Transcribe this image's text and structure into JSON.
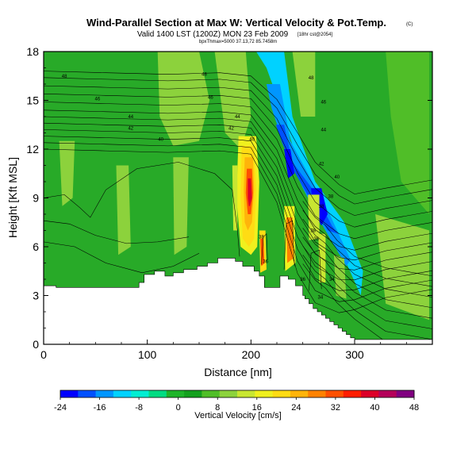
{
  "title": "Wind-Parallel Section at Max W: Vertical Velocity & Pot.Temp.",
  "copyright": "(C)",
  "subtitle": "Valid 1400 LST (1200Z) MON 23 Feb 2009",
  "subtitle_small": "[18hr cst@2054]",
  "subtitle_line3": "bpxThmax=5000 37.13,72 85.7458m",
  "chart_data": {
    "type": "heatmap",
    "xlabel": "Distance [nm]",
    "ylabel": "Height [Kft MSL]",
    "xlim": [
      0,
      375
    ],
    "ylim": [
      0,
      18
    ],
    "x_ticks": [
      "0",
      "100",
      "200",
      "300"
    ],
    "x_tick_values": [
      0,
      100,
      200,
      300
    ],
    "y_ticks": [
      "0",
      "3",
      "6",
      "9",
      "12",
      "15",
      "18"
    ],
    "y_tick_values": [
      0,
      3,
      6,
      9,
      12,
      15,
      18
    ],
    "colorbar": {
      "label": "Vertical Velocity [cm/s]",
      "tick_labels": [
        "-24",
        "-16",
        "-8",
        "0",
        "8",
        "16",
        "24",
        "32",
        "40",
        "48"
      ],
      "tick_values": [
        -24,
        -16,
        -8,
        0,
        8,
        16,
        24,
        32,
        40,
        48
      ],
      "colors": [
        "#0000ff",
        "#0050ff",
        "#0096ff",
        "#00d2ff",
        "#00eed2",
        "#00dc82",
        "#1fb42a",
        "#14a01e",
        "#50be28",
        "#8cd23c",
        "#c8e632",
        "#f0f01e",
        "#ffdc14",
        "#ffb40a",
        "#ff8200",
        "#ff5000",
        "#ff1e00",
        "#dc0028",
        "#b4005a",
        "#800080"
      ]
    },
    "terrain_profile": {
      "x": [
        0,
        0,
        12,
        12,
        92,
        92,
        97,
        97,
        107,
        107,
        117,
        117,
        125,
        125,
        135,
        135,
        148,
        148,
        158,
        158,
        168,
        168,
        185,
        185,
        192,
        192,
        203,
        203,
        208,
        208,
        213,
        213,
        228,
        228,
        236,
        236,
        243,
        243,
        250,
        250,
        252,
        252,
        256,
        256,
        260,
        260,
        264,
        264,
        268,
        268,
        272,
        272,
        276,
        276,
        280,
        280,
        284,
        284,
        288,
        288,
        292,
        292,
        296,
        296,
        300,
        300,
        305,
        305,
        375,
        375
      ],
      "y": [
        0,
        3.6,
        3.6,
        3.5,
        3.5,
        3.8,
        3.8,
        4.3,
        4.3,
        4.5,
        4.5,
        4.2,
        4.2,
        4.4,
        4.4,
        4.6,
        4.6,
        4.8,
        4.8,
        5.0,
        5.0,
        5.3,
        5.3,
        5.1,
        5.1,
        4.8,
        4.8,
        4.5,
        4.5,
        4.2,
        4.2,
        3.5,
        3.5,
        4.2,
        4.2,
        4.0,
        4.0,
        3.6,
        3.6,
        3.0,
        3.0,
        2.8,
        2.8,
        2.5,
        2.5,
        2.2,
        2.2,
        2.0,
        2.0,
        1.8,
        1.8,
        1.6,
        1.6,
        1.4,
        1.4,
        1.2,
        1.2,
        1.0,
        1.0,
        0.8,
        0.8,
        0.6,
        0.6,
        0.4,
        0.4,
        0.3,
        0.3,
        0.3,
        0.3,
        0
      ]
    },
    "contour_labels": [
      {
        "text": "48",
        "x": 20,
        "y": 16.5
      },
      {
        "text": "48",
        "x": 155,
        "y": 16.6
      },
      {
        "text": "48",
        "x": 258,
        "y": 16.4
      },
      {
        "text": "46",
        "x": 52,
        "y": 15.1
      },
      {
        "text": "46",
        "x": 161,
        "y": 15.2
      },
      {
        "text": "46",
        "x": 270,
        "y": 14.9
      },
      {
        "text": "44",
        "x": 84,
        "y": 14.0
      },
      {
        "text": "44",
        "x": 187,
        "y": 14.0
      },
      {
        "text": "44",
        "x": 270,
        "y": 13.2
      },
      {
        "text": "42",
        "x": 84,
        "y": 13.3
      },
      {
        "text": "42",
        "x": 181,
        "y": 13.3
      },
      {
        "text": "42",
        "x": 268,
        "y": 11.1
      },
      {
        "text": "40",
        "x": 113,
        "y": 12.6
      },
      {
        "text": "40",
        "x": 201,
        "y": 12.6
      },
      {
        "text": "40",
        "x": 283,
        "y": 10.3
      },
      {
        "text": "38",
        "x": 210,
        "y": 6.6
      },
      {
        "text": "38",
        "x": 260,
        "y": 7.0
      },
      {
        "text": "38",
        "x": 268,
        "y": 8.5
      },
      {
        "text": "38",
        "x": 277,
        "y": 9.1
      },
      {
        "text": "36",
        "x": 214,
        "y": 5.1
      },
      {
        "text": "36",
        "x": 263,
        "y": 6.5
      },
      {
        "text": "36",
        "x": 250,
        "y": 4.0
      },
      {
        "text": "34",
        "x": 278,
        "y": 4.0
      },
      {
        "text": "34",
        "x": 267,
        "y": 2.9
      }
    ]
  }
}
